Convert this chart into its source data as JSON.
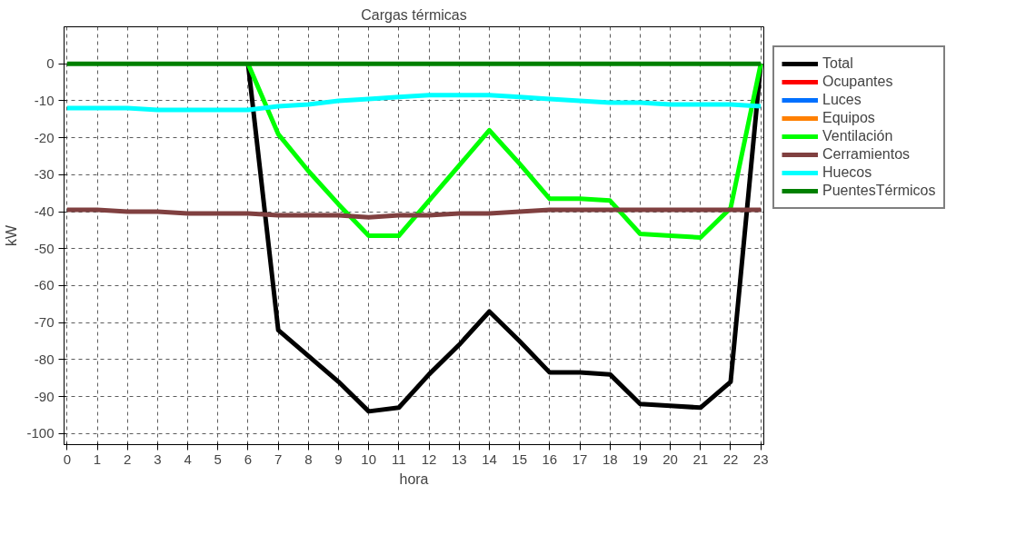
{
  "chart_data": {
    "type": "line",
    "title": "Cargas térmicas",
    "xlabel": "hora",
    "ylabel": "kW",
    "x": [
      0,
      1,
      2,
      3,
      4,
      5,
      6,
      7,
      8,
      9,
      10,
      11,
      12,
      13,
      14,
      15,
      16,
      17,
      18,
      19,
      20,
      21,
      22,
      23
    ],
    "xlim": [
      -0.1,
      23.1
    ],
    "xticks": [
      0,
      1,
      2,
      3,
      4,
      5,
      6,
      7,
      8,
      9,
      10,
      11,
      12,
      13,
      14,
      15,
      16,
      17,
      18,
      19,
      20,
      21,
      22,
      23
    ],
    "ylim": [
      -103,
      10
    ],
    "yticks": [
      -100,
      -90,
      -80,
      -70,
      -60,
      -50,
      -40,
      -30,
      -20,
      -10,
      0
    ],
    "grid": true,
    "legend": "right",
    "line_style": "solid",
    "marker": "none",
    "series": [
      {
        "name": "Total",
        "color": "#000000",
        "values": [
          null,
          null,
          null,
          null,
          null,
          null,
          0,
          -72,
          -79,
          -86,
          -94,
          -93,
          -84,
          -76,
          -67,
          -75,
          -83.5,
          -83.5,
          -84,
          -92,
          -92.5,
          -93,
          -86,
          0
        ]
      },
      {
        "name": "Ocupantes",
        "color": "#ff0000",
        "values": [
          null,
          null,
          null,
          null,
          null,
          null,
          null,
          null,
          null,
          null,
          null,
          null,
          null,
          null,
          null,
          null,
          null,
          null,
          null,
          null,
          null,
          null,
          null,
          null
        ]
      },
      {
        "name": "Luces",
        "color": "#0070ff",
        "values": [
          null,
          null,
          null,
          null,
          null,
          null,
          null,
          null,
          null,
          null,
          null,
          null,
          null,
          null,
          null,
          null,
          null,
          null,
          null,
          null,
          null,
          null,
          null,
          null
        ]
      },
      {
        "name": "Equipos",
        "color": "#ff8000",
        "values": [
          null,
          null,
          null,
          null,
          null,
          null,
          null,
          null,
          null,
          null,
          null,
          null,
          null,
          null,
          null,
          null,
          null,
          null,
          null,
          null,
          null,
          null,
          null,
          null
        ]
      },
      {
        "name": "Ventilación",
        "color": "#00ff00",
        "values": [
          null,
          null,
          null,
          null,
          null,
          null,
          0,
          -19,
          -29,
          -38,
          -46.5,
          -46.5,
          -37,
          -27.5,
          -18,
          -27,
          -36.5,
          -36.5,
          -37,
          -46,
          -46.5,
          -47,
          -39,
          0
        ]
      },
      {
        "name": "Cerramientos",
        "color": "#804040",
        "values": [
          -39.5,
          -39.5,
          -40,
          -40,
          -40.5,
          -40.5,
          -40.5,
          -41,
          -41,
          -41,
          -41.5,
          -41,
          -41,
          -40.5,
          -40.5,
          -40,
          -39.5,
          -39.5,
          -39.5,
          -39.5,
          -39.5,
          -39.5,
          -39.5,
          -39.5
        ]
      },
      {
        "name": "Huecos",
        "color": "#00ffff",
        "values": [
          -12,
          -12,
          -12,
          -12.5,
          -12.5,
          -12.5,
          -12.5,
          -11.5,
          -11,
          -10,
          -9.5,
          -9,
          -8.5,
          -8.5,
          -8.5,
          -9,
          -9.5,
          -10,
          -10.5,
          -10.5,
          -11,
          -11,
          -11,
          -11.5
        ]
      },
      {
        "name": "PuentesTérmicos",
        "color": "#008000",
        "values": [
          0,
          0,
          0,
          0,
          0,
          0,
          0,
          0,
          0,
          0,
          0,
          0,
          0,
          0,
          0,
          0,
          0,
          0,
          0,
          0,
          0,
          0,
          0,
          0
        ]
      }
    ]
  }
}
